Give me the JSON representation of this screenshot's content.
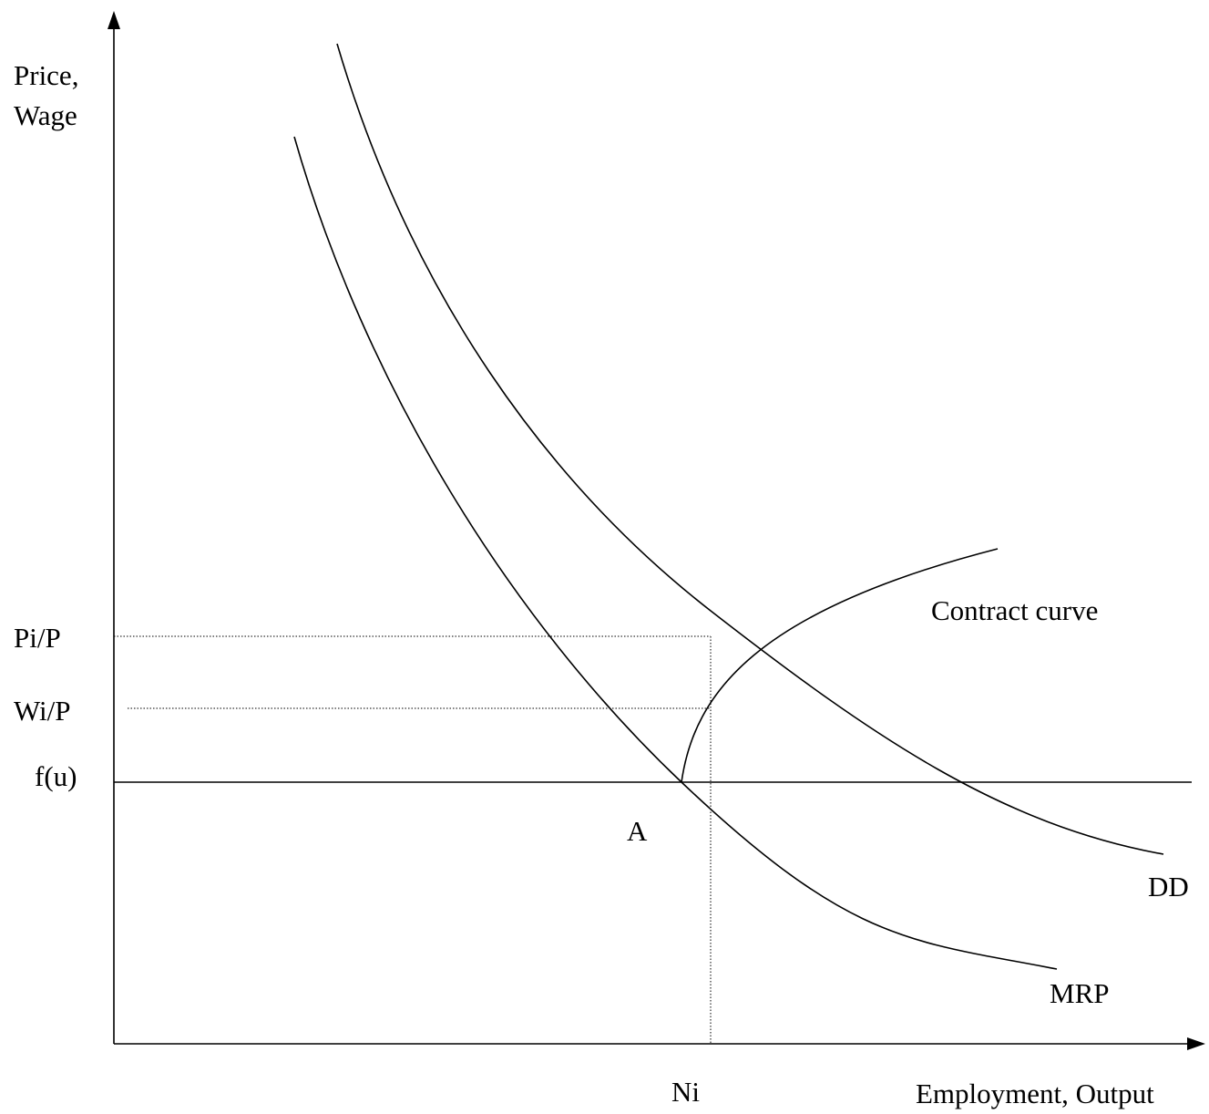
{
  "axes": {
    "y_label": [
      "Price,",
      "Wage"
    ],
    "x_label": "Employment, Output"
  },
  "levels": {
    "pi": "Pi/P",
    "wi": "Wi/P",
    "fu": "f(u)",
    "ni": "Ni"
  },
  "points": {
    "a": "A"
  },
  "curves": {
    "contract": "Contract curve",
    "dd": "DD",
    "mrp": "MRP"
  }
}
